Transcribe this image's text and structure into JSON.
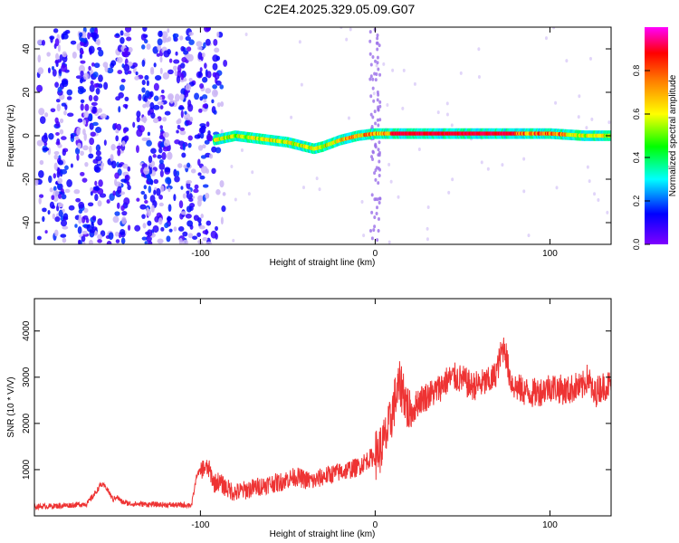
{
  "title": "C2E4.2025.329.05.09.G07",
  "colors": {
    "snr_line": "#ee3333",
    "axis": "#000000",
    "spectrogram_background": "#ffffff"
  },
  "chart_data": [
    {
      "type": "heatmap",
      "panel": "top",
      "title": "C2E4.2025.329.05.09.G07",
      "xlabel": "Height of straight line (km)",
      "ylabel": "Frequency (Hz)",
      "xlim": [
        -195,
        135
      ],
      "ylim": [
        -50,
        50
      ],
      "xticks": [
        -100,
        0,
        100
      ],
      "yticks": [
        -40,
        -20,
        0,
        20,
        40
      ],
      "colorbar": {
        "label": "Normalized spectral amplitude",
        "range": [
          0.0,
          1.0
        ],
        "ticks": [
          0.0,
          0.2,
          0.4,
          0.6,
          0.8
        ],
        "colormap": [
          "#7f00ff",
          "#0000ff",
          "#00ffff",
          "#00ff00",
          "#ffff00",
          "#ff8000",
          "#ff0000",
          "#ff00ff"
        ]
      },
      "ridge": {
        "x": [
          -92,
          -80,
          -70,
          -60,
          -50,
          -40,
          -35,
          -30,
          -20,
          -10,
          0,
          10,
          20,
          40,
          60,
          80,
          100,
          120,
          135
        ],
        "y": [
          -2,
          0,
          -1,
          -2,
          -3,
          -5,
          -6,
          -5,
          -2,
          0,
          1,
          1,
          1,
          1,
          1,
          1,
          1,
          0,
          0
        ]
      },
      "noise_region_x": [
        -195,
        -85
      ]
    },
    {
      "type": "line",
      "panel": "bottom",
      "xlabel": "Height of straight line (km)",
      "ylabel": "SNR (10 * V/V)",
      "xlim": [
        -195,
        135
      ],
      "ylim": [
        0,
        4700
      ],
      "xticks": [
        -100,
        0,
        100
      ],
      "yticks": [
        1000,
        2000,
        3000,
        4000
      ],
      "series": [
        {
          "x": [
            -195,
            -185,
            -175,
            -165,
            -160,
            -157,
            -154,
            -150,
            -148,
            -145,
            -140,
            -130,
            -120,
            -110,
            -105,
            -102,
            -98,
            -95,
            -92,
            -90,
            -85,
            -80,
            -75,
            -70,
            -65,
            -60,
            -55,
            -50,
            -45,
            -40,
            -35,
            -30,
            -25,
            -20,
            -15,
            -10,
            -5,
            0,
            3,
            5,
            8,
            10,
            12,
            14,
            16,
            18,
            20,
            22,
            25,
            30,
            35,
            40,
            45,
            50,
            55,
            60,
            65,
            68,
            70,
            72,
            74,
            76,
            78,
            80,
            85,
            90,
            95,
            100,
            105,
            110,
            115,
            118,
            120,
            122,
            125,
            128,
            130,
            135
          ],
          "y": [
            200,
            210,
            230,
            260,
            500,
            680,
            620,
            350,
            420,
            300,
            260,
            250,
            240,
            230,
            240,
            900,
            1050,
            1000,
            700,
            750,
            600,
            500,
            550,
            600,
            650,
            700,
            720,
            800,
            850,
            780,
            750,
            850,
            900,
            950,
            1000,
            1050,
            1200,
            1300,
            1450,
            1600,
            1900,
            2300,
            2600,
            2800,
            2750,
            2400,
            2200,
            2300,
            2500,
            2600,
            2700,
            2900,
            3000,
            2950,
            2800,
            2850,
            2900,
            3000,
            3200,
            3500,
            3700,
            3200,
            2900,
            2800,
            2700,
            2650,
            2700,
            2800,
            2750,
            2700,
            2800,
            2750,
            2900,
            3000,
            2600,
            2750,
            2800,
            2850
          ]
        }
      ]
    }
  ]
}
